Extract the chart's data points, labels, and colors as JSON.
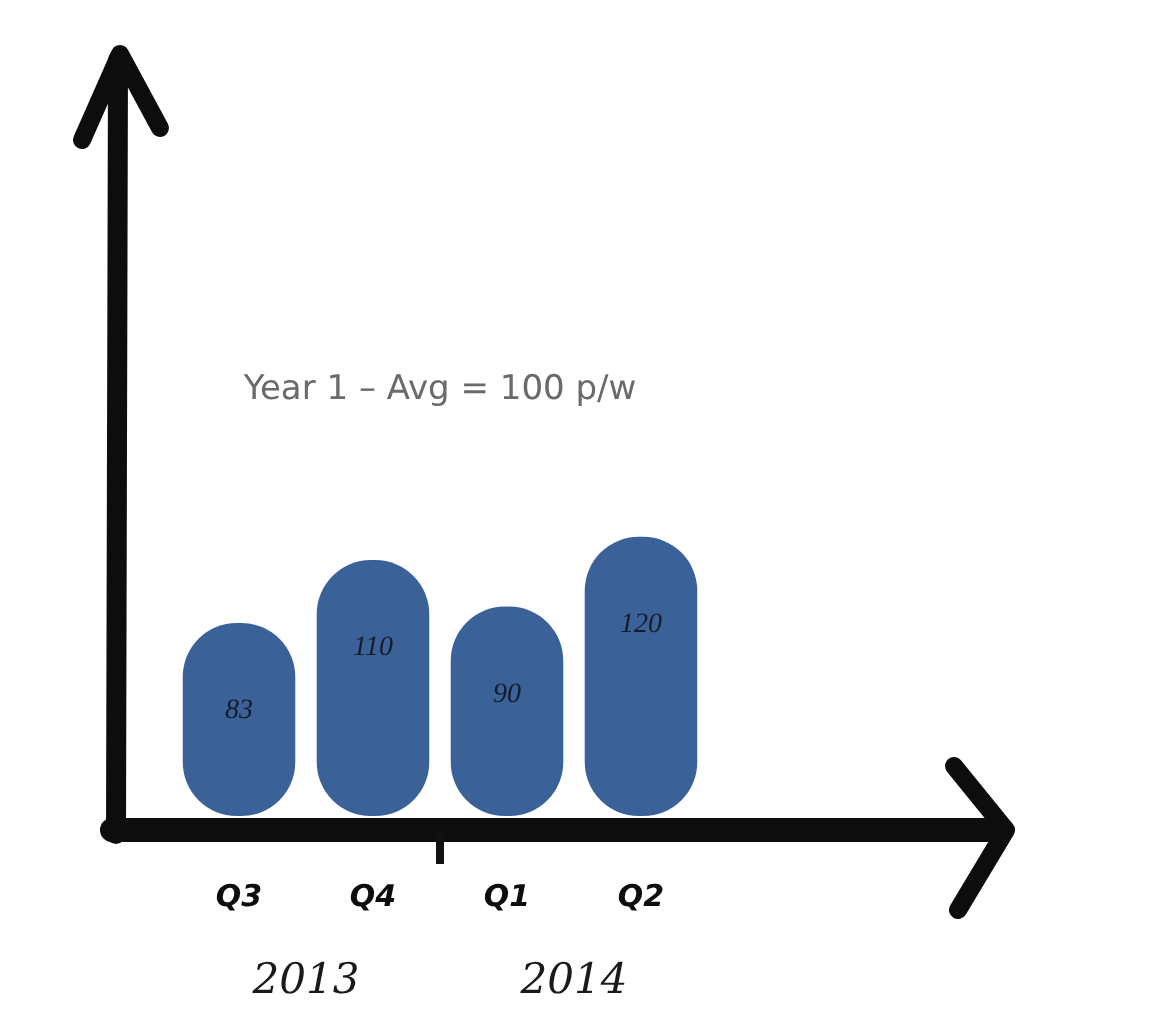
{
  "chart_data": {
    "type": "bar",
    "categories": [
      "Q3",
      "Q4",
      "Q1",
      "Q2"
    ],
    "values": [
      83,
      110,
      90,
      120
    ],
    "color": "#3b6199",
    "data_labels": true,
    "tick_labels": "x",
    "annotations": [
      "Year 1 – Avg = 100 p/w",
      "2013",
      "2014"
    ]
  }
}
